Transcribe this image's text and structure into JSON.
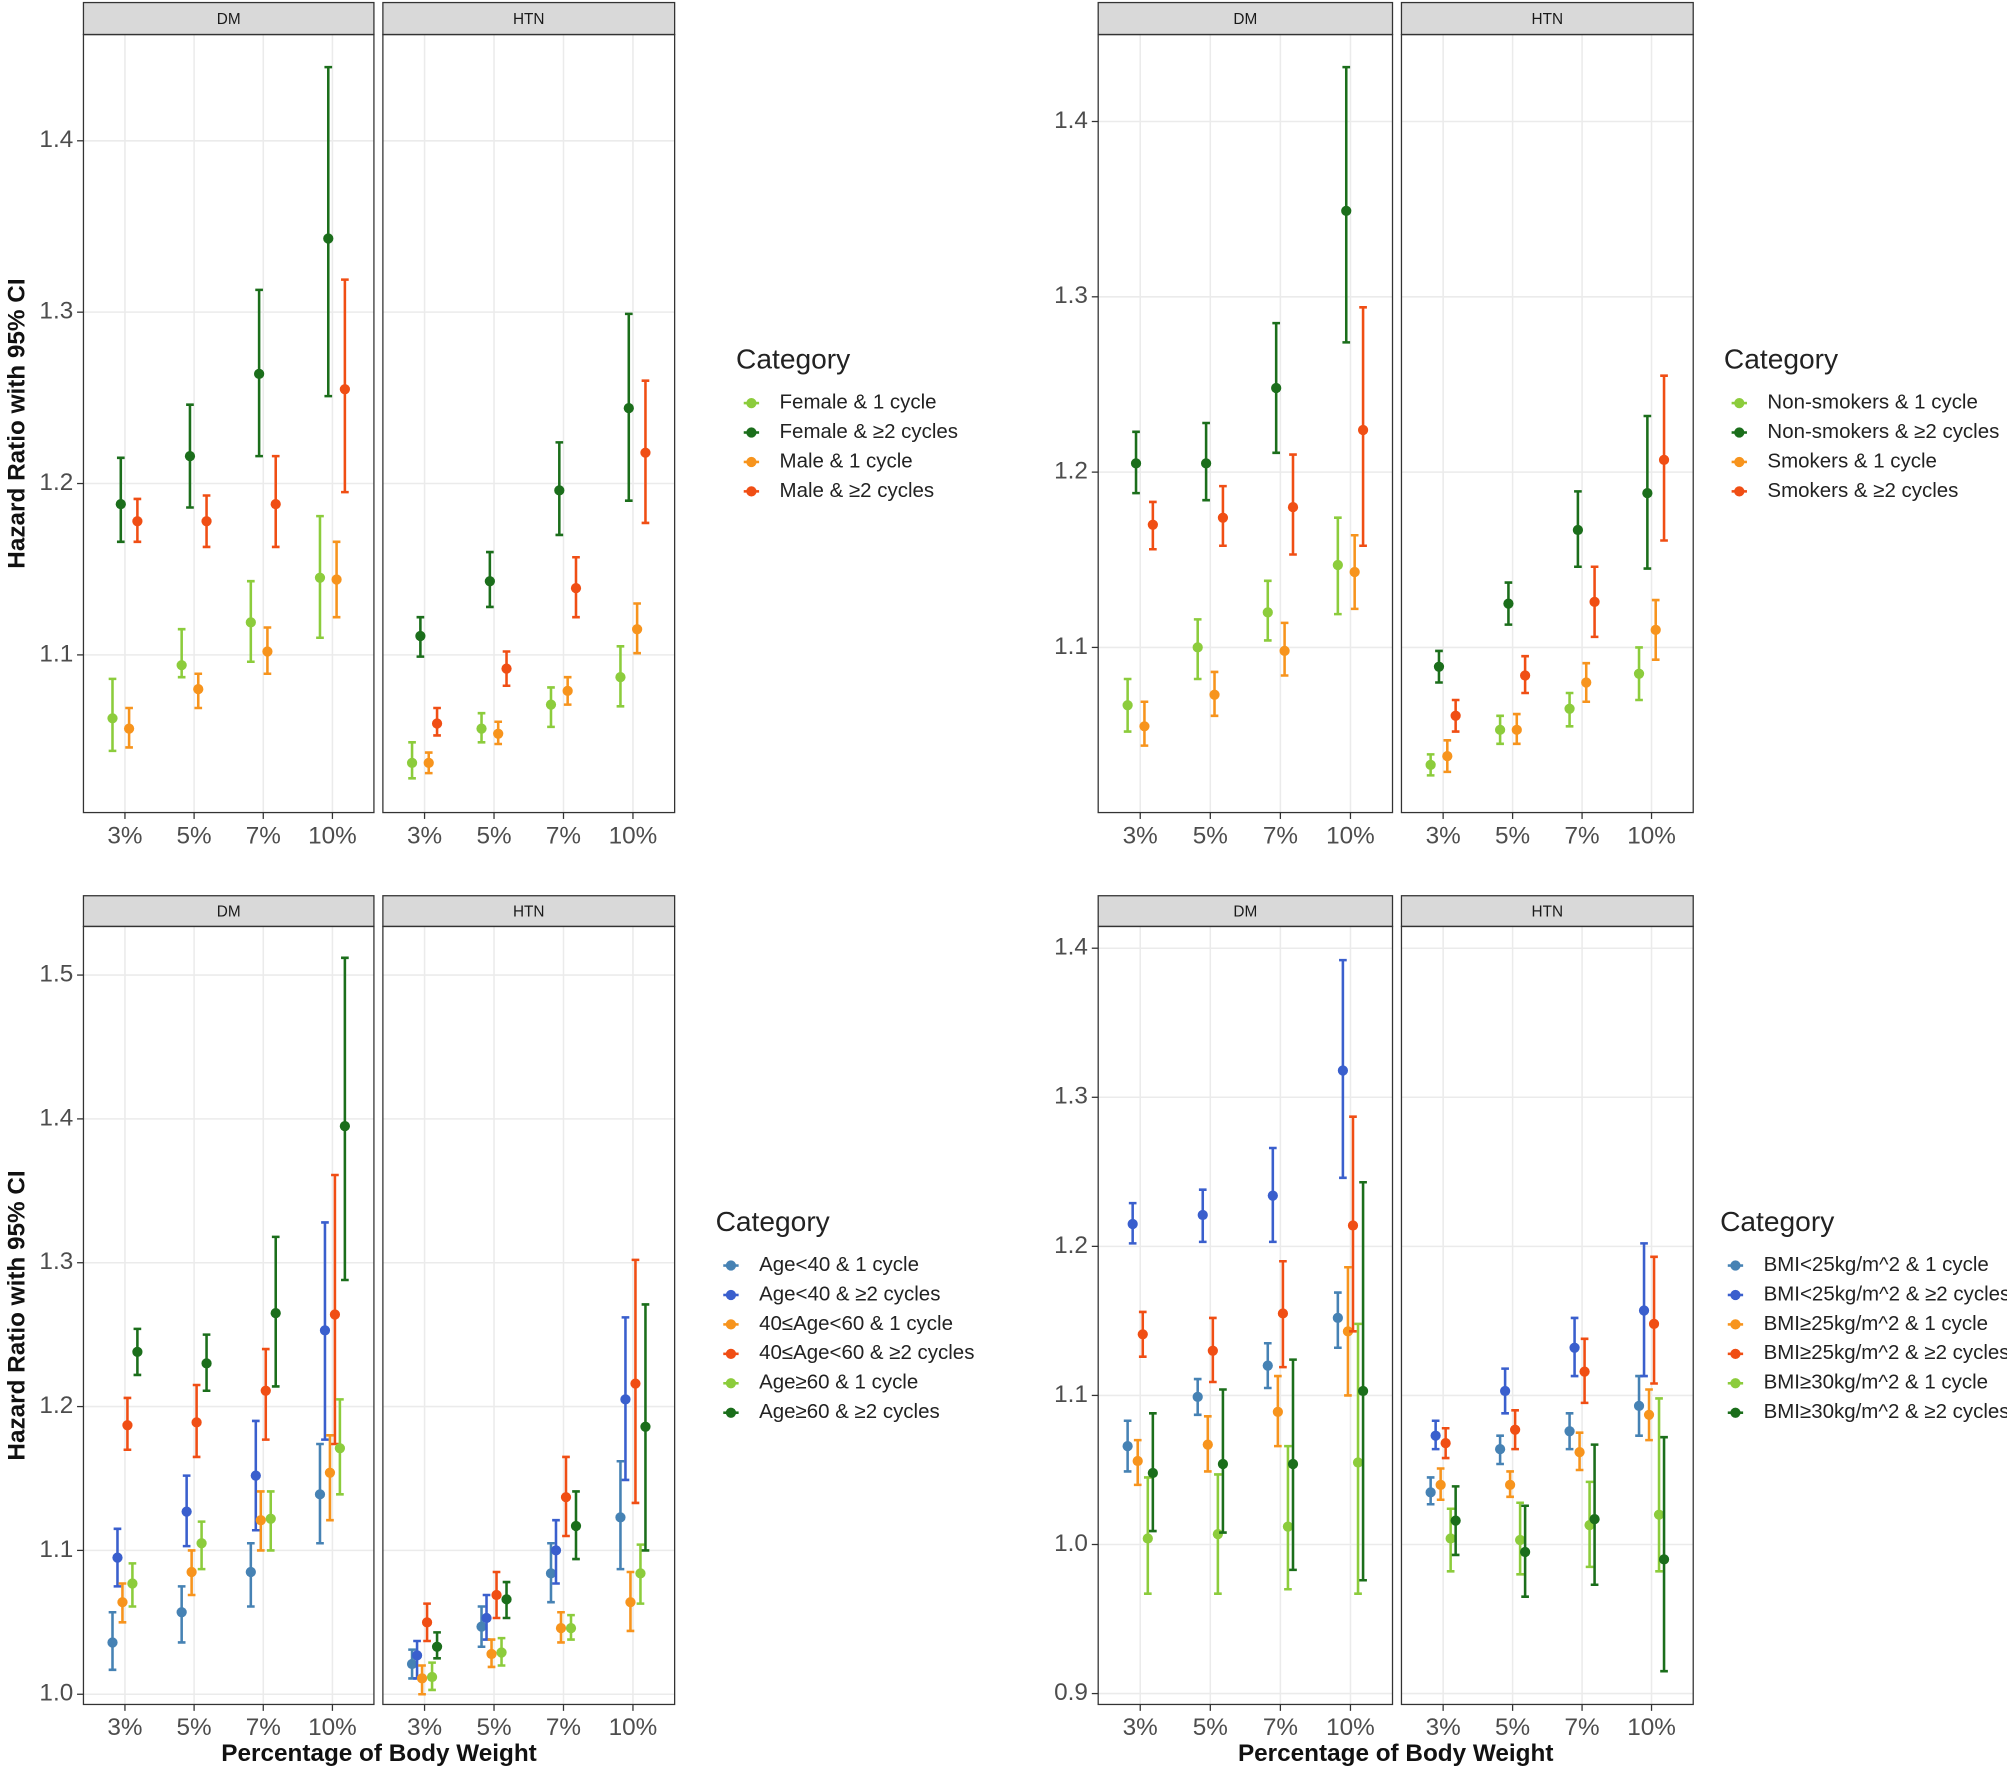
{
  "chart_data": [
    {
      "type": "dot_errorbar",
      "facets": [
        "DM",
        "HTN"
      ],
      "categories": [
        "3%",
        "5%",
        "7%",
        "10%"
      ],
      "y_label": "Hazard Ratio with 95% CI",
      "legend_title": "Category",
      "grid": true,
      "ylim": [
        1.008,
        1.462
      ],
      "yticks": [
        1.1,
        1.2,
        1.3,
        1.4
      ],
      "series": [
        {
          "name": "Female & 1 cycle",
          "color": "#8ccc3c",
          "values": [
            [
              1.063,
              1.094,
              1.119,
              1.145
            ],
            [
              1.037,
              1.057,
              1.071,
              1.087
            ]
          ],
          "lower": [
            [
              1.044,
              1.087,
              1.096,
              1.11
            ],
            [
              1.028,
              1.049,
              1.058,
              1.07
            ]
          ],
          "upper": [
            [
              1.086,
              1.115,
              1.143,
              1.181
            ],
            [
              1.049,
              1.066,
              1.081,
              1.105
            ]
          ]
        },
        {
          "name": "Female & ≥2 cycles",
          "color": "#1b6e1b",
          "values": [
            [
              1.188,
              1.216,
              1.264,
              1.343
            ],
            [
              1.111,
              1.143,
              1.196,
              1.244
            ]
          ],
          "lower": [
            [
              1.166,
              1.186,
              1.216,
              1.251
            ],
            [
              1.099,
              1.128,
              1.17,
              1.19
            ]
          ],
          "upper": [
            [
              1.215,
              1.246,
              1.313,
              1.443
            ],
            [
              1.122,
              1.16,
              1.224,
              1.299
            ]
          ]
        },
        {
          "name": "Male & 1 cycle",
          "color": "#f7941d",
          "values": [
            [
              1.057,
              1.08,
              1.102,
              1.144
            ],
            [
              1.037,
              1.054,
              1.079,
              1.115
            ]
          ],
          "lower": [
            [
              1.046,
              1.069,
              1.089,
              1.122
            ],
            [
              1.031,
              1.048,
              1.071,
              1.101
            ]
          ],
          "upper": [
            [
              1.069,
              1.089,
              1.116,
              1.166
            ],
            [
              1.043,
              1.061,
              1.087,
              1.13
            ]
          ]
        },
        {
          "name": "Male & ≥2 cycles",
          "color": "#f04e14",
          "values": [
            [
              1.178,
              1.178,
              1.188,
              1.255
            ],
            [
              1.06,
              1.092,
              1.139,
              1.218
            ]
          ],
          "lower": [
            [
              1.166,
              1.163,
              1.163,
              1.195
            ],
            [
              1.053,
              1.082,
              1.122,
              1.177
            ]
          ],
          "upper": [
            [
              1.191,
              1.193,
              1.216,
              1.319
            ],
            [
              1.069,
              1.102,
              1.157,
              1.26
            ]
          ]
        }
      ]
    },
    {
      "type": "dot_errorbar",
      "facets": [
        "DM",
        "HTN"
      ],
      "categories": [
        "3%",
        "5%",
        "7%",
        "10%"
      ],
      "legend_title": "Category",
      "grid": true,
      "ylim": [
        1.0058,
        1.4496
      ],
      "yticks": [
        1.1,
        1.2,
        1.3,
        1.4
      ],
      "series": [
        {
          "name": "Non-smokers & 1 cycle",
          "color": "#8ccc3c",
          "values": [
            [
              1.067,
              1.1,
              1.12,
              1.147
            ],
            [
              1.033,
              1.053,
              1.065,
              1.085
            ]
          ],
          "lower": [
            [
              1.052,
              1.082,
              1.104,
              1.119
            ],
            [
              1.027,
              1.045,
              1.055,
              1.07
            ]
          ],
          "upper": [
            [
              1.082,
              1.116,
              1.138,
              1.174
            ],
            [
              1.039,
              1.061,
              1.074,
              1.1
            ]
          ]
        },
        {
          "name": "Non-smokers & ≥2 cycles",
          "color": "#1b6e1b",
          "values": [
            [
              1.205,
              1.205,
              1.248,
              1.349
            ],
            [
              1.089,
              1.125,
              1.167,
              1.188
            ]
          ],
          "lower": [
            [
              1.188,
              1.184,
              1.211,
              1.274
            ],
            [
              1.08,
              1.113,
              1.146,
              1.145
            ]
          ],
          "upper": [
            [
              1.223,
              1.228,
              1.285,
              1.431
            ],
            [
              1.098,
              1.137,
              1.189,
              1.232
            ]
          ]
        },
        {
          "name": "Smokers & 1 cycle",
          "color": "#f7941d",
          "values": [
            [
              1.055,
              1.073,
              1.098,
              1.143
            ],
            [
              1.038,
              1.053,
              1.08,
              1.11
            ]
          ],
          "lower": [
            [
              1.044,
              1.061,
              1.084,
              1.122
            ],
            [
              1.029,
              1.045,
              1.069,
              1.093
            ]
          ],
          "upper": [
            [
              1.069,
              1.086,
              1.114,
              1.164
            ],
            [
              1.047,
              1.062,
              1.091,
              1.127
            ]
          ]
        },
        {
          "name": "Smokers & ≥2 cycles",
          "color": "#f04e14",
          "values": [
            [
              1.17,
              1.174,
              1.18,
              1.224
            ],
            [
              1.061,
              1.084,
              1.126,
              1.207
            ]
          ],
          "lower": [
            [
              1.156,
              1.158,
              1.153,
              1.158
            ],
            [
              1.052,
              1.074,
              1.106,
              1.161
            ]
          ],
          "upper": [
            [
              1.183,
              1.192,
              1.21,
              1.294
            ],
            [
              1.07,
              1.095,
              1.146,
              1.255
            ]
          ]
        }
      ]
    },
    {
      "type": "dot_errorbar",
      "facets": [
        "DM",
        "HTN"
      ],
      "categories": [
        "3%",
        "5%",
        "7%",
        "10%"
      ],
      "y_label": "Hazard Ratio with 95% CI",
      "x_label": "Percentage of Body Weight",
      "legend_title": "Category",
      "grid": true,
      "ylim": [
        0.9929,
        1.5338
      ],
      "yticks": [
        {
          "value": 1.0,
          "label": "1.0"
        },
        1.1,
        1.2,
        1.3,
        1.4,
        1.5
      ],
      "series": [
        {
          "name": "Age<40 & 1 cycle",
          "color": "#4682b4",
          "values": [
            [
              1.036,
              1.057,
              1.085,
              1.139
            ],
            [
              1.021,
              1.047,
              1.084,
              1.123
            ]
          ],
          "lower": [
            [
              1.017,
              1.036,
              1.061,
              1.105
            ],
            [
              1.011,
              1.033,
              1.064,
              1.087
            ]
          ],
          "upper": [
            [
              1.057,
              1.075,
              1.105,
              1.174
            ],
            [
              1.031,
              1.061,
              1.105,
              1.162
            ]
          ]
        },
        {
          "name": "Age<40 & ≥2 cycles",
          "color": "#3a5fcd",
          "values": [
            [
              1.095,
              1.127,
              1.152,
              1.253
            ],
            [
              1.027,
              1.053,
              1.1,
              1.205
            ]
          ],
          "lower": [
            [
              1.075,
              1.103,
              1.114,
              1.177
            ],
            [
              1.011,
              1.038,
              1.077,
              1.149
            ]
          ],
          "upper": [
            [
              1.115,
              1.152,
              1.19,
              1.328
            ],
            [
              1.037,
              1.069,
              1.121,
              1.262
            ]
          ]
        },
        {
          "name": "40≤Age<60 & 1 cycle",
          "color": "#f7941d",
          "values": [
            [
              1.064,
              1.085,
              1.121,
              1.154
            ],
            [
              1.011,
              1.028,
              1.046,
              1.064
            ]
          ],
          "lower": [
            [
              1.05,
              1.069,
              1.1,
              1.121
            ],
            [
              1.0,
              1.019,
              1.036,
              1.044
            ]
          ],
          "upper": [
            [
              1.077,
              1.1,
              1.141,
              1.18
            ],
            [
              1.02,
              1.038,
              1.057,
              1.085
            ]
          ]
        },
        {
          "name": "40≤Age<60 & ≥2 cycles",
          "color": "#f04e14",
          "values": [
            [
              1.187,
              1.189,
              1.211,
              1.264
            ],
            [
              1.05,
              1.069,
              1.137,
              1.216
            ]
          ],
          "lower": [
            [
              1.17,
              1.165,
              1.177,
              1.174
            ],
            [
              1.037,
              1.053,
              1.11,
              1.133
            ]
          ],
          "upper": [
            [
              1.206,
              1.215,
              1.24,
              1.361
            ],
            [
              1.063,
              1.085,
              1.165,
              1.302
            ]
          ]
        },
        {
          "name": "Age≥60 & 1 cycle",
          "color": "#8ccc3c",
          "values": [
            [
              1.077,
              1.105,
              1.122,
              1.171
            ],
            [
              1.012,
              1.029,
              1.046,
              1.084
            ]
          ],
          "lower": [
            [
              1.061,
              1.087,
              1.1,
              1.139
            ],
            [
              1.003,
              1.02,
              1.038,
              1.063
            ]
          ],
          "upper": [
            [
              1.091,
              1.12,
              1.141,
              1.205
            ],
            [
              1.022,
              1.039,
              1.055,
              1.104
            ]
          ]
        },
        {
          "name": "Age≥60 & ≥2 cycles",
          "color": "#1b6e1b",
          "values": [
            [
              1.238,
              1.23,
              1.265,
              1.395
            ],
            [
              1.033,
              1.066,
              1.117,
              1.186
            ]
          ],
          "lower": [
            [
              1.222,
              1.211,
              1.214,
              1.288
            ],
            [
              1.025,
              1.053,
              1.094,
              1.1
            ]
          ],
          "upper": [
            [
              1.254,
              1.25,
              1.318,
              1.512
            ],
            [
              1.043,
              1.078,
              1.141,
              1.271
            ]
          ]
        }
      ]
    },
    {
      "type": "dot_errorbar",
      "facets": [
        "DM",
        "HTN"
      ],
      "categories": [
        "3%",
        "5%",
        "7%",
        "10%"
      ],
      "x_label": "Percentage of Body Weight",
      "legend_title": "Category",
      "grid": true,
      "ylim": [
        0.8927,
        1.4146
      ],
      "yticks": [
        0.9,
        {
          "value": 1.0,
          "label": "1.0"
        },
        1.1,
        1.2,
        1.3,
        1.4
      ],
      "series": [
        {
          "name": "BMI<25kg/m^2 & 1 cycle",
          "color": "#4682b4",
          "values": [
            [
              1.066,
              1.099,
              1.12,
              1.152
            ],
            [
              1.035,
              1.064,
              1.076,
              1.093
            ]
          ],
          "lower": [
            [
              1.049,
              1.087,
              1.105,
              1.132
            ],
            [
              1.027,
              1.054,
              1.064,
              1.073
            ]
          ],
          "upper": [
            [
              1.083,
              1.111,
              1.135,
              1.169
            ],
            [
              1.045,
              1.073,
              1.088,
              1.113
            ]
          ]
        },
        {
          "name": "BMI<25kg/m^2 & ≥2 cycles",
          "color": "#3a5fcd",
          "values": [
            [
              1.215,
              1.221,
              1.234,
              1.318
            ],
            [
              1.073,
              1.103,
              1.132,
              1.157
            ]
          ],
          "lower": [
            [
              1.202,
              1.203,
              1.203,
              1.246
            ],
            [
              1.064,
              1.088,
              1.113,
              1.113
            ]
          ],
          "upper": [
            [
              1.229,
              1.238,
              1.266,
              1.392
            ],
            [
              1.083,
              1.118,
              1.152,
              1.202
            ]
          ]
        },
        {
          "name": "BMI≥25kg/m^2 & 1 cycle",
          "color": "#f7941d",
          "values": [
            [
              1.056,
              1.067,
              1.089,
              1.143
            ],
            [
              1.04,
              1.04,
              1.062,
              1.087
            ]
          ],
          "lower": [
            [
              1.04,
              1.049,
              1.066,
              1.1
            ],
            [
              1.03,
              1.032,
              1.05,
              1.07
            ]
          ],
          "upper": [
            [
              1.07,
              1.086,
              1.113,
              1.186
            ],
            [
              1.051,
              1.049,
              1.075,
              1.104
            ]
          ]
        },
        {
          "name": "BMI≥25kg/m^2 & ≥2 cycles",
          "color": "#f04e14",
          "values": [
            [
              1.141,
              1.13,
              1.155,
              1.214
            ],
            [
              1.068,
              1.077,
              1.116,
              1.148
            ]
          ],
          "lower": [
            [
              1.126,
              1.109,
              1.119,
              1.143
            ],
            [
              1.058,
              1.064,
              1.095,
              1.108
            ]
          ],
          "upper": [
            [
              1.156,
              1.152,
              1.19,
              1.287
            ],
            [
              1.078,
              1.09,
              1.138,
              1.193
            ]
          ]
        },
        {
          "name": "BMI≥30kg/m^2 & 1 cycle",
          "color": "#8ccc3c",
          "values": [
            [
              1.004,
              1.007,
              1.012,
              1.055
            ],
            [
              1.004,
              1.003,
              1.013,
              1.02
            ]
          ],
          "lower": [
            [
              0.967,
              0.967,
              0.97,
              0.967
            ],
            [
              0.982,
              0.98,
              0.985,
              0.982
            ]
          ],
          "upper": [
            [
              1.045,
              1.047,
              1.066,
              1.148
            ],
            [
              1.024,
              1.028,
              1.042,
              1.098
            ]
          ]
        },
        {
          "name": "BMI≥30kg/m^2 & ≥2 cycles",
          "color": "#1b6e1b",
          "values": [
            [
              1.048,
              1.054,
              1.054,
              1.103
            ],
            [
              1.016,
              0.995,
              1.017,
              0.99
            ]
          ],
          "lower": [
            [
              1.009,
              1.008,
              0.983,
              0.976
            ],
            [
              0.993,
              0.965,
              0.973,
              0.915
            ]
          ],
          "upper": [
            [
              1.088,
              1.104,
              1.124,
              1.243
            ],
            [
              1.039,
              1.026,
              1.067,
              1.072
            ]
          ]
        }
      ]
    }
  ]
}
